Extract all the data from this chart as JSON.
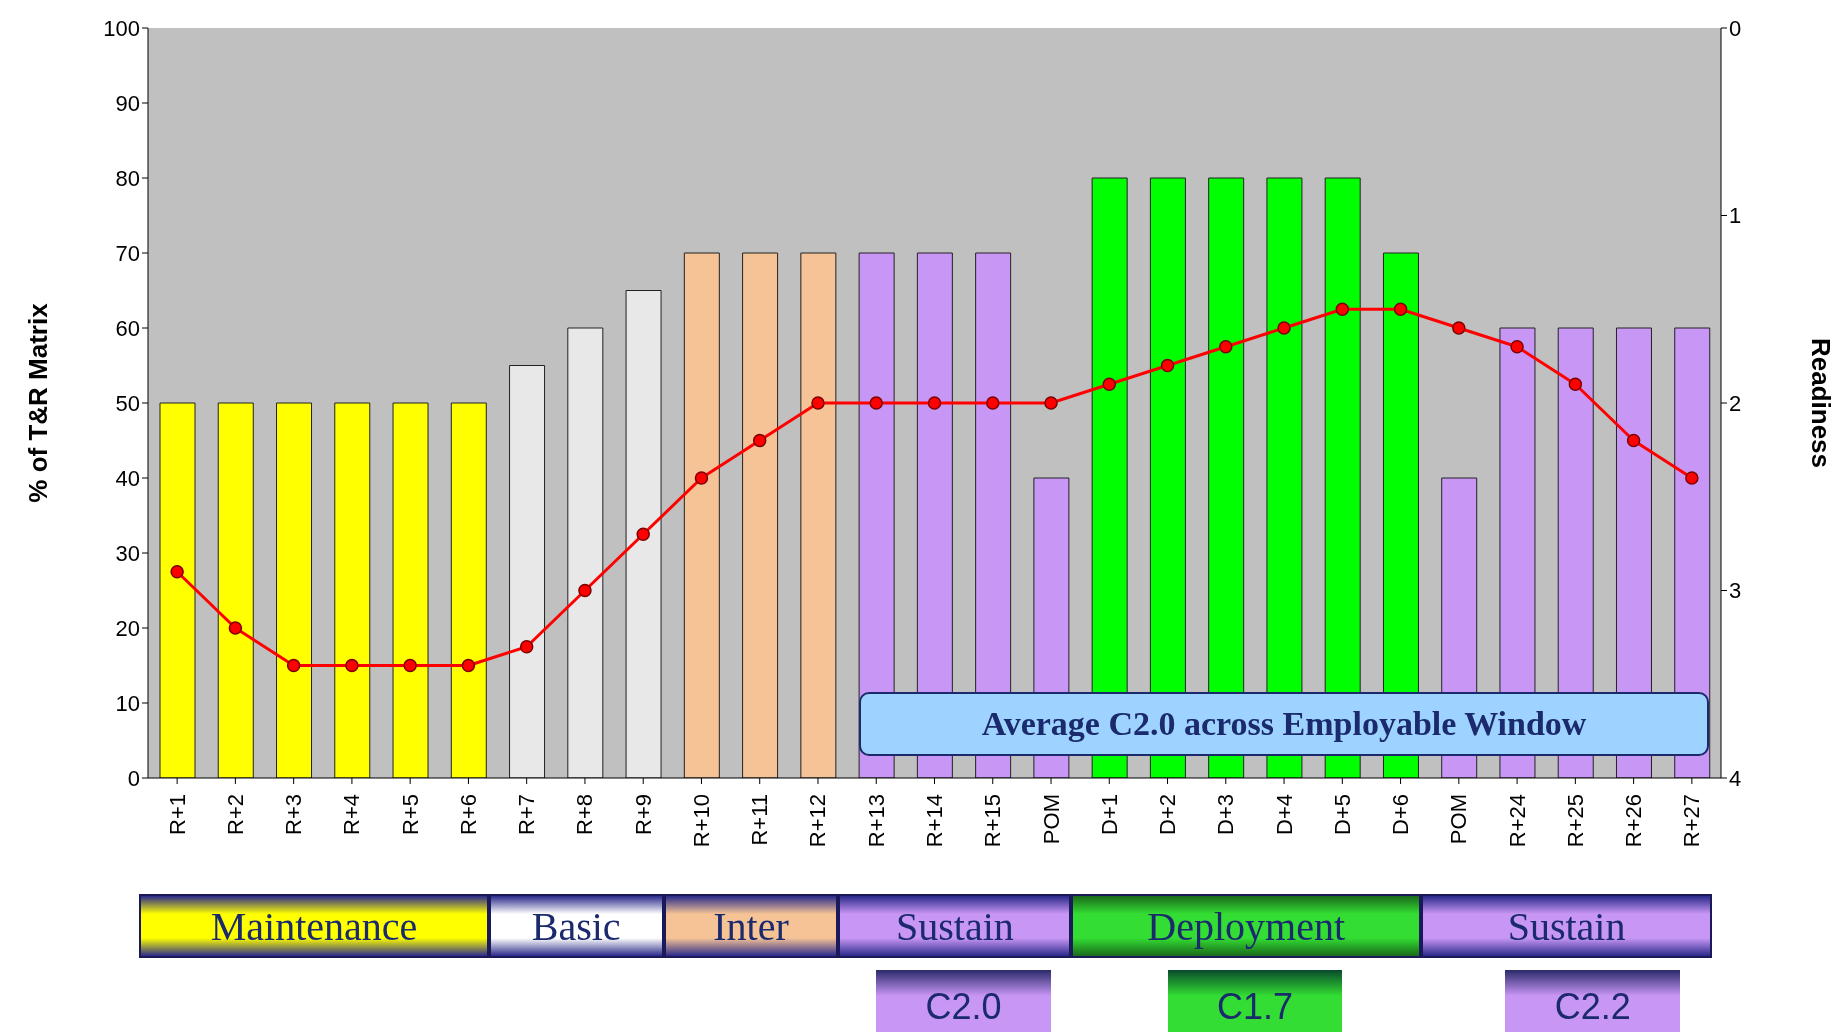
{
  "chart_data": {
    "type": "bar",
    "ylabel": "% of T&R Matrix",
    "y2label": "Readiness",
    "categories": [
      "R+1",
      "R+2",
      "R+3",
      "R+4",
      "R+5",
      "R+6",
      "R+7",
      "R+8",
      "R+9",
      "R+10",
      "R+11",
      "R+12",
      "R+13",
      "R+14",
      "R+15",
      "POM",
      "D+1",
      "D+2",
      "D+3",
      "D+4",
      "D+5",
      "D+6",
      "POM",
      "R+24",
      "R+25",
      "R+26",
      "R+27"
    ],
    "series": [
      {
        "values": [
          50,
          50,
          50,
          50,
          50,
          50,
          55,
          60,
          65,
          70,
          70,
          70,
          70,
          70,
          70,
          40,
          80,
          80,
          80,
          80,
          80,
          70,
          40,
          60,
          60,
          60,
          60
        ],
        "colors": [
          "#ffff00",
          "#ffff00",
          "#ffff00",
          "#ffff00",
          "#ffff00",
          "#ffff00",
          "#e8e8e8",
          "#e8e8e8",
          "#e8e8e8",
          "#f5c396",
          "#f5c396",
          "#f5c396",
          "#c896f5",
          "#c896f5",
          "#c896f5",
          "#c896f5",
          "#00ff00",
          "#00ff00",
          "#00ff00",
          "#00ff00",
          "#00ff00",
          "#00ff00",
          "#c896f5",
          "#c896f5",
          "#c896f5",
          "#c896f5",
          "#c896f5"
        ]
      },
      {
        "type": "line",
        "axis": "y2",
        "color": "#ff0000",
        "values": [
          2.9,
          3.2,
          3.4,
          3.4,
          3.4,
          3.4,
          3.3,
          3.0,
          2.7,
          2.4,
          2.2,
          2.0,
          2.0,
          2.0,
          2.0,
          2.0,
          1.9,
          1.8,
          1.7,
          1.6,
          1.5,
          1.5,
          1.6,
          1.7,
          1.9,
          2.2,
          2.4
        ]
      }
    ],
    "ylim": [
      0,
      100
    ],
    "yticks": [
      0,
      10,
      20,
      30,
      40,
      50,
      60,
      70,
      80,
      90,
      100
    ],
    "y2lim": [
      4,
      0
    ],
    "y2ticks": [
      0,
      1,
      2,
      3,
      4
    ],
    "marker": "circle",
    "line_style": "solid",
    "grid": false,
    "annotations": [
      "Average C2.0 across Employable Window",
      "Maintenance",
      "Basic",
      "Inter",
      "Sustain",
      "Deployment",
      "Sustain",
      "C2.0",
      "C1.7",
      "C2.2"
    ]
  }
}
